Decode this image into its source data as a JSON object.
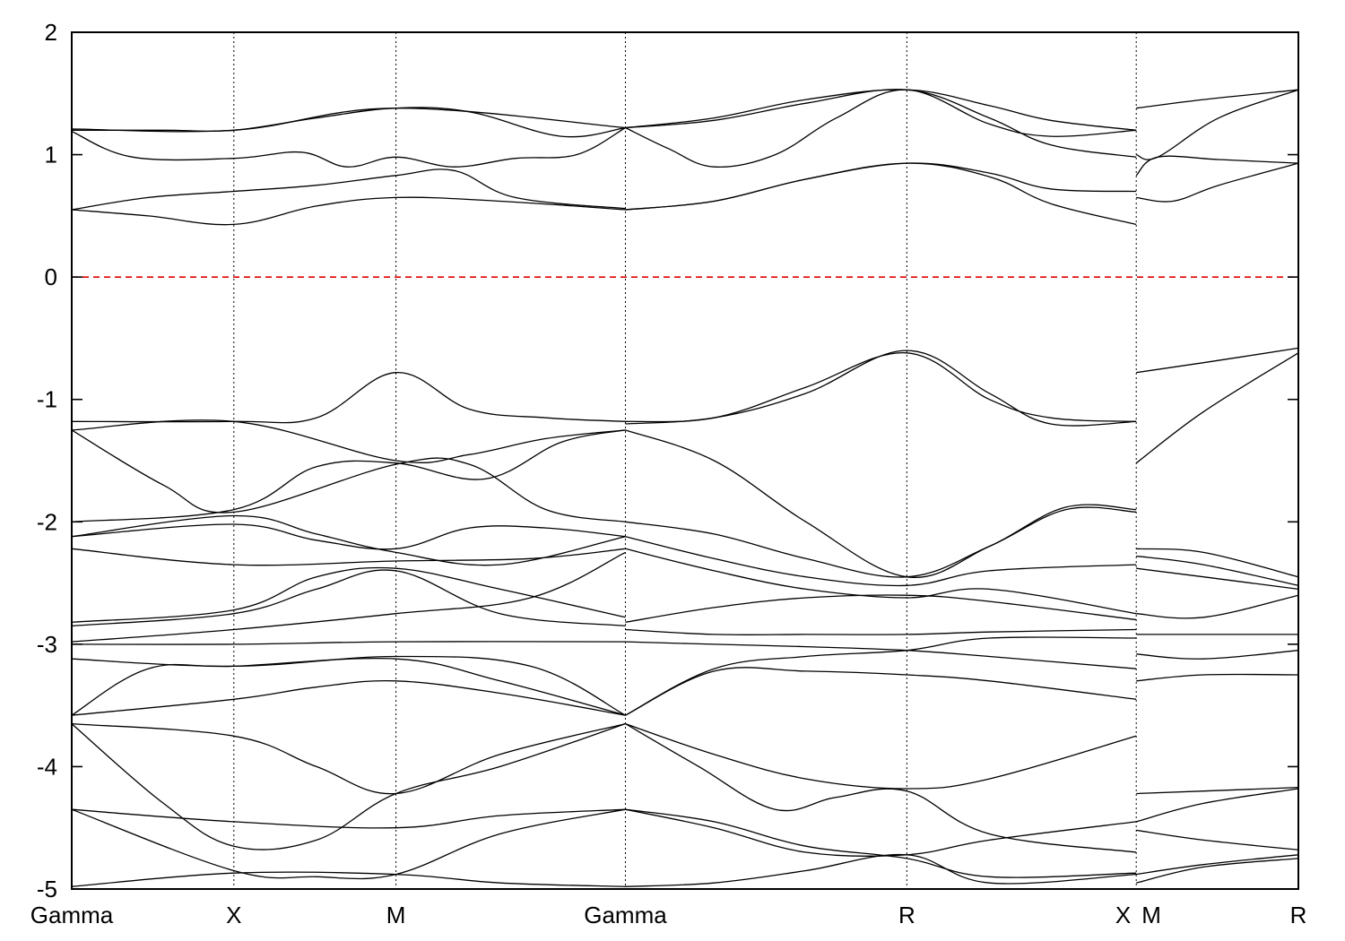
{
  "chart_data": {
    "type": "line",
    "title": "",
    "xlabel": "",
    "ylabel": "",
    "ylim": [
      -5,
      2
    ],
    "yticks": [
      2,
      1,
      0,
      -1,
      -2,
      -3,
      -4,
      -5
    ],
    "ytick_labels": [
      "2",
      "1",
      "0",
      "-1",
      "-2",
      "-3",
      "-4",
      "-5"
    ],
    "xlim": [
      0,
      3.98
    ],
    "kpoints": [
      {
        "label": "Gamma",
        "x": 0.0
      },
      {
        "label": "X",
        "x": 0.53
      },
      {
        "label": "M",
        "x": 1.06
      },
      {
        "label": "Gamma",
        "x": 1.81
      },
      {
        "label": "R",
        "x": 2.73
      },
      {
        "label": "X",
        "x": 3.48
      },
      {
        "label": "M",
        "x": 3.48
      },
      {
        "label": "R",
        "x": 4.01
      }
    ],
    "fermi_level": 0,
    "fermi_color": "#e00000",
    "line_color": "#000000",
    "series": [
      {
        "x": [
          0.0,
          0.53,
          1.06,
          1.81
        ],
        "y": [
          1.21,
          1.2,
          1.38,
          1.22
        ]
      },
      {
        "x": [
          0.0,
          0.3,
          0.53,
          0.8,
          1.06,
          1.3,
          1.6,
          1.81
        ],
        "y": [
          1.2,
          1.2,
          1.2,
          1.3,
          1.38,
          1.35,
          1.15,
          1.22
        ]
      },
      {
        "x": [
          0.0,
          0.2,
          0.53,
          0.75,
          0.9,
          1.06,
          1.25,
          1.45,
          1.65,
          1.81
        ],
        "y": [
          1.19,
          0.98,
          0.97,
          1.02,
          0.9,
          0.98,
          0.9,
          0.97,
          1.0,
          1.22
        ]
      },
      {
        "x": [
          0.0,
          0.25,
          0.53,
          0.8,
          1.06,
          1.25,
          1.45,
          1.81
        ],
        "y": [
          0.55,
          0.65,
          0.7,
          0.75,
          0.83,
          0.87,
          0.65,
          0.56
        ]
      },
      {
        "x": [
          0.0,
          0.25,
          0.53,
          0.8,
          1.06,
          1.4,
          1.81
        ],
        "y": [
          0.55,
          0.5,
          0.43,
          0.58,
          0.65,
          0.62,
          0.55
        ]
      },
      {
        "x": [
          1.81,
          2.1,
          2.4,
          2.73,
          3.0,
          3.2,
          3.48
        ],
        "y": [
          1.22,
          1.3,
          1.45,
          1.53,
          1.4,
          1.28,
          1.2
        ]
      },
      {
        "x": [
          1.81,
          2.1,
          2.4,
          2.73,
          3.0,
          3.2,
          3.48
        ],
        "y": [
          1.22,
          1.28,
          1.42,
          1.53,
          1.3,
          1.08,
          0.98
        ]
      },
      {
        "x": [
          1.81,
          1.95,
          2.1,
          2.3,
          2.5,
          2.73,
          3.0,
          3.2,
          3.48
        ],
        "y": [
          1.22,
          1.05,
          0.9,
          1.0,
          1.3,
          1.53,
          1.25,
          1.15,
          1.2
        ]
      },
      {
        "x": [
          1.81,
          2.1,
          2.4,
          2.73,
          3.0,
          3.2,
          3.48
        ],
        "y": [
          0.55,
          0.62,
          0.8,
          0.93,
          0.85,
          0.72,
          0.7
        ]
      },
      {
        "x": [
          1.81,
          2.1,
          2.4,
          2.73,
          3.0,
          3.2,
          3.48
        ],
        "y": [
          0.55,
          0.62,
          0.8,
          0.93,
          0.82,
          0.6,
          0.43
        ]
      },
      {
        "x": [
          3.48,
          3.7,
          4.01
        ],
        "y": [
          1.38,
          1.45,
          1.53
        ]
      },
      {
        "x": [
          3.48,
          3.55,
          3.75,
          4.01
        ],
        "y": [
          1.0,
          0.98,
          1.3,
          1.53
        ]
      },
      {
        "x": [
          3.48,
          3.55,
          3.75,
          4.01
        ],
        "y": [
          0.83,
          0.98,
          0.96,
          0.93
        ]
      },
      {
        "x": [
          3.48,
          3.6,
          3.75,
          4.01
        ],
        "y": [
          0.65,
          0.62,
          0.75,
          0.93
        ]
      },
      {
        "x": [
          0.0,
          0.53,
          0.8,
          1.06,
          1.3,
          1.55,
          1.81
        ],
        "y": [
          -1.18,
          -1.18,
          -1.15,
          -0.78,
          -1.08,
          -1.15,
          -1.18
        ]
      },
      {
        "x": [
          0.0,
          0.53,
          1.06,
          1.3,
          1.55,
          1.81
        ],
        "y": [
          -1.25,
          -1.18,
          -1.5,
          -1.45,
          -1.32,
          -1.25
        ]
      },
      {
        "x": [
          0.0,
          0.3,
          0.53,
          1.06,
          1.3,
          1.55,
          1.81
        ],
        "y": [
          -1.25,
          -1.7,
          -1.92,
          -1.53,
          -1.53,
          -1.9,
          -2.0
        ]
      },
      {
        "x": [
          0.0,
          0.53,
          0.8,
          1.06,
          1.35,
          1.6,
          1.81
        ],
        "y": [
          -2.0,
          -1.9,
          -1.55,
          -1.52,
          -1.65,
          -1.35,
          -1.25
        ]
      },
      {
        "x": [
          0.0,
          0.53,
          0.8,
          1.06,
          1.3,
          1.55,
          1.81
        ],
        "y": [
          -2.12,
          -2.02,
          -2.15,
          -2.22,
          -2.05,
          -2.05,
          -2.12
        ]
      },
      {
        "x": [
          0.0,
          0.53,
          0.8,
          1.06,
          1.4,
          1.81
        ],
        "y": [
          -2.12,
          -1.95,
          -2.1,
          -2.25,
          -2.35,
          -2.12
        ]
      },
      {
        "x": [
          0.0,
          0.53,
          1.06,
          1.5,
          1.81
        ],
        "y": [
          -2.22,
          -2.35,
          -2.32,
          -2.3,
          -2.22
        ]
      },
      {
        "x": [
          0.0,
          0.53,
          0.8,
          1.06,
          1.4,
          1.81
        ],
        "y": [
          -2.82,
          -2.72,
          -2.45,
          -2.38,
          -2.55,
          -2.78
        ]
      },
      {
        "x": [
          0.0,
          0.53,
          0.8,
          1.06,
          1.4,
          1.81
        ],
        "y": [
          -2.85,
          -2.75,
          -2.55,
          -2.4,
          -2.75,
          -2.85
        ]
      },
      {
        "x": [
          0.0,
          0.53,
          1.06,
          1.5,
          1.81
        ],
        "y": [
          -2.98,
          -2.88,
          -2.75,
          -2.62,
          -2.25
        ]
      },
      {
        "x": [
          0.0,
          0.53,
          1.06,
          1.81
        ],
        "y": [
          -3.0,
          -3.0,
          -2.98,
          -2.98
        ]
      },
      {
        "x": [
          0.0,
          0.53,
          1.06,
          1.5,
          1.81
        ],
        "y": [
          -3.12,
          -3.18,
          -3.1,
          -3.18,
          -3.58
        ]
      },
      {
        "x": [
          0.0,
          0.25,
          0.53,
          1.06,
          1.4,
          1.81
        ],
        "y": [
          -3.58,
          -3.2,
          -3.18,
          -3.12,
          -3.3,
          -3.58
        ]
      },
      {
        "x": [
          0.0,
          0.53,
          0.8,
          1.06,
          1.4,
          1.81
        ],
        "y": [
          -3.58,
          -3.45,
          -3.35,
          -3.3,
          -3.4,
          -3.58
        ]
      },
      {
        "x": [
          0.0,
          0.53,
          0.8,
          1.06,
          1.4,
          1.81
        ],
        "y": [
          -3.65,
          -3.75,
          -4.0,
          -4.22,
          -3.9,
          -3.65
        ]
      },
      {
        "x": [
          0.0,
          0.3,
          0.53,
          0.8,
          1.06,
          1.4,
          1.81
        ],
        "y": [
          -3.65,
          -4.3,
          -4.65,
          -4.6,
          -4.22,
          -4.0,
          -3.65
        ]
      },
      {
        "x": [
          0.0,
          0.53,
          1.06,
          1.4,
          1.81
        ],
        "y": [
          -4.35,
          -4.45,
          -4.5,
          -4.4,
          -4.35
        ]
      },
      {
        "x": [
          0.0,
          0.53,
          0.8,
          1.06,
          1.4,
          1.81
        ],
        "y": [
          -4.35,
          -4.85,
          -4.9,
          -4.88,
          -4.55,
          -4.35
        ]
      },
      {
        "x": [
          0.0,
          0.53,
          1.06,
          1.4,
          1.81
        ],
        "y": [
          -4.98,
          -4.87,
          -4.88,
          -4.95,
          -4.98
        ]
      },
      {
        "x": [
          1.81,
          2.1,
          2.4,
          2.73,
          3.0,
          3.2,
          3.48
        ],
        "y": [
          -1.18,
          -1.15,
          -0.9,
          -0.62,
          -1.0,
          -1.15,
          -1.18
        ]
      },
      {
        "x": [
          1.81,
          2.1,
          2.4,
          2.73,
          3.0,
          3.2,
          3.48
        ],
        "y": [
          -1.2,
          -1.15,
          -0.95,
          -0.6,
          -0.95,
          -1.2,
          -1.18
        ]
      },
      {
        "x": [
          1.81,
          2.1,
          2.4,
          2.73,
          3.0,
          3.25,
          3.48
        ],
        "y": [
          -1.25,
          -1.5,
          -2.0,
          -2.45,
          -2.2,
          -1.88,
          -1.9
        ]
      },
      {
        "x": [
          1.81,
          2.1,
          2.4,
          2.73,
          3.0,
          3.25,
          3.48
        ],
        "y": [
          -2.0,
          -2.1,
          -2.3,
          -2.45,
          -2.2,
          -1.9,
          -1.92
        ]
      },
      {
        "x": [
          1.81,
          2.1,
          2.4,
          2.73,
          3.0,
          3.48
        ],
        "y": [
          -2.12,
          -2.3,
          -2.45,
          -2.52,
          -2.4,
          -2.35
        ]
      },
      {
        "x": [
          1.81,
          2.1,
          2.4,
          2.73,
          3.0,
          3.48
        ],
        "y": [
          -2.22,
          -2.4,
          -2.55,
          -2.62,
          -2.55,
          -2.75
        ]
      },
      {
        "x": [
          1.81,
          2.1,
          2.4,
          2.73,
          3.0,
          3.48
        ],
        "y": [
          -2.82,
          -2.7,
          -2.62,
          -2.6,
          -2.65,
          -2.8
        ]
      },
      {
        "x": [
          1.81,
          2.1,
          2.4,
          2.73,
          3.0,
          3.48
        ],
        "y": [
          -2.88,
          -2.92,
          -2.92,
          -2.92,
          -2.9,
          -2.88
        ]
      },
      {
        "x": [
          1.81,
          2.1,
          2.4,
          2.73,
          3.0,
          3.48
        ],
        "y": [
          -2.98,
          -3.0,
          -3.02,
          -3.05,
          -3.1,
          -3.2
        ]
      },
      {
        "x": [
          1.81,
          2.1,
          2.4,
          2.73,
          3.0,
          3.48
        ],
        "y": [
          -3.58,
          -3.2,
          -3.1,
          -3.05,
          -2.95,
          -2.95
        ]
      },
      {
        "x": [
          1.81,
          2.1,
          2.4,
          2.73,
          3.0,
          3.48
        ],
        "y": [
          -3.58,
          -3.22,
          -3.22,
          -3.25,
          -3.3,
          -3.45
        ]
      },
      {
        "x": [
          1.81,
          2.1,
          2.4,
          2.73,
          3.0,
          3.48
        ],
        "y": [
          -3.65,
          -3.9,
          -4.1,
          -4.18,
          -4.1,
          -3.75
        ]
      },
      {
        "x": [
          1.81,
          2.05,
          2.3,
          2.5,
          2.73,
          3.0,
          3.48
        ],
        "y": [
          -3.65,
          -4.0,
          -4.35,
          -4.25,
          -4.2,
          -4.55,
          -4.7
        ]
      },
      {
        "x": [
          1.81,
          2.1,
          2.4,
          2.73,
          3.0,
          3.48
        ],
        "y": [
          -4.35,
          -4.5,
          -4.7,
          -4.72,
          -4.6,
          -4.45
        ]
      },
      {
        "x": [
          1.81,
          2.1,
          2.4,
          2.73,
          3.0,
          3.48
        ],
        "y": [
          -4.35,
          -4.45,
          -4.65,
          -4.75,
          -4.9,
          -4.87
        ]
      },
      {
        "x": [
          1.81,
          2.1,
          2.4,
          2.73,
          3.0,
          3.48
        ],
        "y": [
          -4.98,
          -4.95,
          -4.85,
          -4.72,
          -4.95,
          -4.88
        ]
      },
      {
        "x": [
          3.48,
          3.7,
          4.01
        ],
        "y": [
          -0.78,
          -0.7,
          -0.58
        ]
      },
      {
        "x": [
          3.48,
          3.7,
          4.01
        ],
        "y": [
          -1.52,
          -1.1,
          -0.62
        ]
      },
      {
        "x": [
          3.48,
          3.7,
          4.01
        ],
        "y": [
          -2.22,
          -2.25,
          -2.45
        ]
      },
      {
        "x": [
          3.48,
          3.7,
          4.01
        ],
        "y": [
          -2.28,
          -2.35,
          -2.52
        ]
      },
      {
        "x": [
          3.48,
          3.7,
          4.01
        ],
        "y": [
          -2.38,
          -2.45,
          -2.55
        ]
      },
      {
        "x": [
          3.48,
          3.7,
          4.01
        ],
        "y": [
          -2.75,
          -2.78,
          -2.6
        ]
      },
      {
        "x": [
          3.48,
          3.7,
          4.01
        ],
        "y": [
          -2.92,
          -2.92,
          -2.92
        ]
      },
      {
        "x": [
          3.48,
          3.7,
          4.01
        ],
        "y": [
          -3.08,
          -3.12,
          -3.05
        ]
      },
      {
        "x": [
          3.48,
          3.7,
          4.01
        ],
        "y": [
          -3.3,
          -3.25,
          -3.25
        ]
      },
      {
        "x": [
          3.48,
          3.7,
          4.01
        ],
        "y": [
          -4.22,
          -4.2,
          -4.17
        ]
      },
      {
        "x": [
          3.48,
          3.7,
          4.01
        ],
        "y": [
          -4.45,
          -4.3,
          -4.18
        ]
      },
      {
        "x": [
          3.48,
          3.7,
          4.01
        ],
        "y": [
          -4.52,
          -4.6,
          -4.68
        ]
      },
      {
        "x": [
          3.48,
          3.7,
          4.01
        ],
        "y": [
          -4.88,
          -4.8,
          -4.72
        ]
      },
      {
        "x": [
          3.48,
          3.7,
          4.01
        ],
        "y": [
          -4.95,
          -4.82,
          -4.75
        ]
      }
    ]
  }
}
